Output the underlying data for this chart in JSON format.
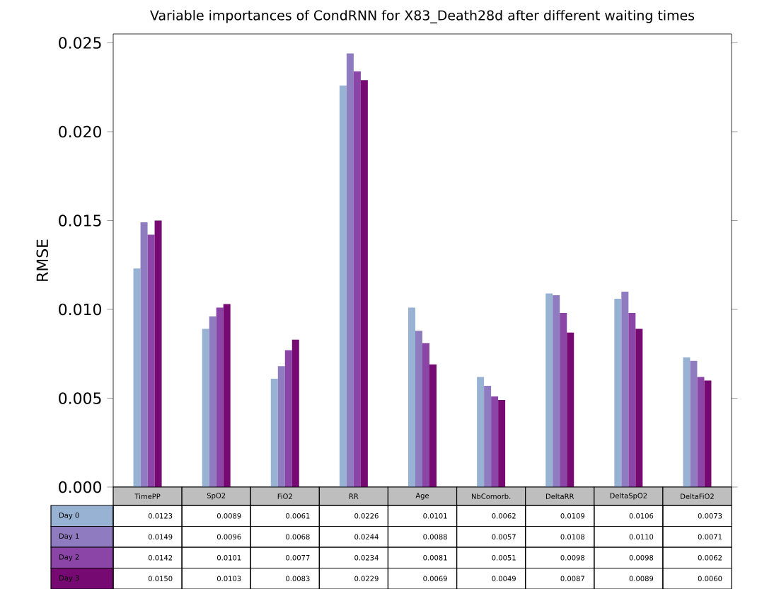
{
  "chart_data": {
    "type": "bar",
    "title": "Variable importances of CondRNN for X83_Death28d after different waiting times",
    "ylabel": "RMSE",
    "categories": [
      "TimePP",
      "SpO2",
      "FiO2",
      "RR",
      "Age",
      "NbComorb.",
      "DeltaRR",
      "DeltaSpO2",
      "DeltaFiO2"
    ],
    "ylim": [
      0,
      0.0255
    ],
    "yticks": [
      {
        "value": 0,
        "label": "0.000"
      },
      {
        "value": 0.005,
        "label": "0.005"
      },
      {
        "value": 0.01,
        "label": "0.010"
      },
      {
        "value": 0.015,
        "label": "0.015"
      },
      {
        "value": 0.02,
        "label": "0.020"
      },
      {
        "value": 0.025,
        "label": "0.025"
      }
    ],
    "series": [
      {
        "name": "Day 0",
        "color": "#98b2d4",
        "values": [
          0.0123,
          0.0089,
          0.0061,
          0.0226,
          0.0101,
          0.0062,
          0.0109,
          0.0106,
          0.0073
        ],
        "value_labels": [
          "0.0123",
          "0.0089",
          "0.0061",
          "0.0226",
          "0.0101",
          "0.0062",
          "0.0109",
          "0.0106",
          "0.0073"
        ]
      },
      {
        "name": "Day 1",
        "color": "#8f7cc0",
        "values": [
          0.0149,
          0.0096,
          0.0068,
          0.0244,
          0.0088,
          0.0057,
          0.0108,
          0.011,
          0.0071
        ],
        "value_labels": [
          "0.0149",
          "0.0096",
          "0.0068",
          "0.0244",
          "0.0088",
          "0.0057",
          "0.0108",
          "0.0110",
          "0.0071"
        ]
      },
      {
        "name": "Day 2",
        "color": "#8a45a6",
        "values": [
          0.0142,
          0.0101,
          0.0077,
          0.0234,
          0.0081,
          0.0051,
          0.0098,
          0.0098,
          0.0062
        ],
        "value_labels": [
          "0.0142",
          "0.0101",
          "0.0077",
          "0.0234",
          "0.0081",
          "0.0051",
          "0.0098",
          "0.0098",
          "0.0062"
        ]
      },
      {
        "name": "Day 3",
        "color": "#770a72",
        "values": [
          0.015,
          0.0103,
          0.0083,
          0.0229,
          0.0069,
          0.0049,
          0.0087,
          0.0089,
          0.006
        ],
        "value_labels": [
          "0.0150",
          "0.0103",
          "0.0083",
          "0.0229",
          "0.0069",
          "0.0049",
          "0.0087",
          "0.0089",
          "0.0060"
        ]
      }
    ]
  }
}
